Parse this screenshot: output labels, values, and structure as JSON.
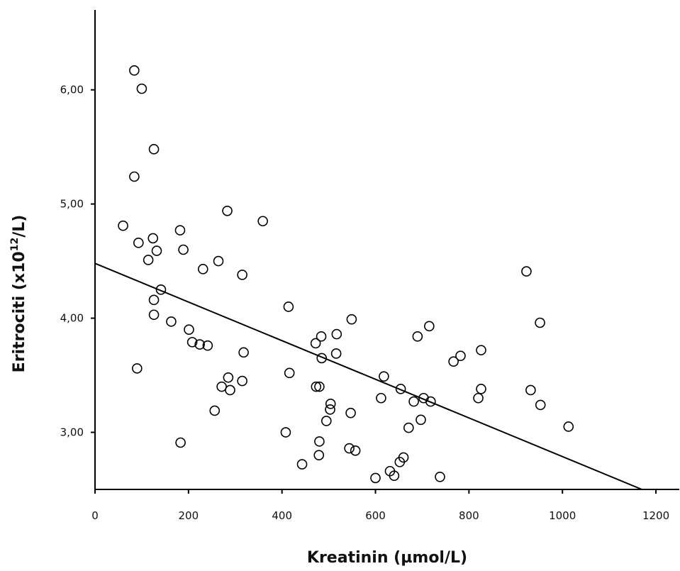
{
  "chart_data": {
    "type": "scatter",
    "xlabel": "Kreatinin (µmol/L)",
    "ylabel_base": "Eritrociti (x10",
    "ylabel_sup": "12",
    "ylabel_tail": "/L)",
    "xlim": [
      0,
      1250
    ],
    "ylim": [
      2.5,
      6.7
    ],
    "xticks": [
      0,
      200,
      400,
      600,
      800,
      1000,
      1200
    ],
    "xtick_labels": [
      "0",
      "200",
      "400",
      "600",
      "800",
      "1000",
      "1200"
    ],
    "yticks": [
      3,
      4,
      5,
      6
    ],
    "ytick_labels": [
      "3,00",
      "4,00",
      "5,00",
      "6,00"
    ],
    "grid": false,
    "marker": "open-circle",
    "fit_line": {
      "x": [
        0,
        1170
      ],
      "y": [
        4.48,
        2.5
      ]
    },
    "points": [
      {
        "x": 84,
        "y": 6.17
      },
      {
        "x": 100,
        "y": 6.01
      },
      {
        "x": 126,
        "y": 5.48
      },
      {
        "x": 84,
        "y": 5.24
      },
      {
        "x": 283,
        "y": 4.94
      },
      {
        "x": 359,
        "y": 4.85
      },
      {
        "x": 60,
        "y": 4.81
      },
      {
        "x": 182,
        "y": 4.77
      },
      {
        "x": 124,
        "y": 4.7
      },
      {
        "x": 93,
        "y": 4.66
      },
      {
        "x": 132,
        "y": 4.59
      },
      {
        "x": 189,
        "y": 4.6
      },
      {
        "x": 114,
        "y": 4.51
      },
      {
        "x": 264,
        "y": 4.5
      },
      {
        "x": 231,
        "y": 4.43
      },
      {
        "x": 315,
        "y": 4.38
      },
      {
        "x": 141,
        "y": 4.25
      },
      {
        "x": 126,
        "y": 4.16
      },
      {
        "x": 414,
        "y": 4.1
      },
      {
        "x": 126,
        "y": 4.03
      },
      {
        "x": 163,
        "y": 3.97
      },
      {
        "x": 201,
        "y": 3.9
      },
      {
        "x": 208,
        "y": 3.79
      },
      {
        "x": 224,
        "y": 3.77
      },
      {
        "x": 241,
        "y": 3.76
      },
      {
        "x": 318,
        "y": 3.7
      },
      {
        "x": 90,
        "y": 3.56
      },
      {
        "x": 416,
        "y": 3.52
      },
      {
        "x": 285,
        "y": 3.48
      },
      {
        "x": 315,
        "y": 3.45
      },
      {
        "x": 271,
        "y": 3.4
      },
      {
        "x": 289,
        "y": 3.37
      },
      {
        "x": 256,
        "y": 3.19
      },
      {
        "x": 183,
        "y": 2.91
      },
      {
        "x": 408,
        "y": 3.0
      },
      {
        "x": 443,
        "y": 2.72
      },
      {
        "x": 484,
        "y": 3.84
      },
      {
        "x": 472,
        "y": 3.78
      },
      {
        "x": 517,
        "y": 3.86
      },
      {
        "x": 549,
        "y": 3.99
      },
      {
        "x": 485,
        "y": 3.65
      },
      {
        "x": 516,
        "y": 3.69
      },
      {
        "x": 473,
        "y": 3.4
      },
      {
        "x": 480,
        "y": 3.4
      },
      {
        "x": 504,
        "y": 3.25
      },
      {
        "x": 503,
        "y": 3.2
      },
      {
        "x": 495,
        "y": 3.1
      },
      {
        "x": 547,
        "y": 3.17
      },
      {
        "x": 480,
        "y": 2.92
      },
      {
        "x": 544,
        "y": 2.86
      },
      {
        "x": 557,
        "y": 2.84
      },
      {
        "x": 479,
        "y": 2.8
      },
      {
        "x": 600,
        "y": 2.6
      },
      {
        "x": 618,
        "y": 3.49
      },
      {
        "x": 612,
        "y": 3.3
      },
      {
        "x": 654,
        "y": 3.38
      },
      {
        "x": 631,
        "y": 2.66
      },
      {
        "x": 640,
        "y": 2.62
      },
      {
        "x": 652,
        "y": 2.74
      },
      {
        "x": 660,
        "y": 2.78
      },
      {
        "x": 671,
        "y": 3.04
      },
      {
        "x": 682,
        "y": 3.27
      },
      {
        "x": 690,
        "y": 3.84
      },
      {
        "x": 697,
        "y": 3.11
      },
      {
        "x": 703,
        "y": 3.3
      },
      {
        "x": 715,
        "y": 3.93
      },
      {
        "x": 718,
        "y": 3.27
      },
      {
        "x": 738,
        "y": 2.61
      },
      {
        "x": 767,
        "y": 3.62
      },
      {
        "x": 782,
        "y": 3.67
      },
      {
        "x": 826,
        "y": 3.72
      },
      {
        "x": 820,
        "y": 3.3
      },
      {
        "x": 826,
        "y": 3.38
      },
      {
        "x": 923,
        "y": 4.41
      },
      {
        "x": 932,
        "y": 3.37
      },
      {
        "x": 952,
        "y": 3.96
      },
      {
        "x": 953,
        "y": 3.24
      },
      {
        "x": 1013,
        "y": 3.05
      }
    ]
  }
}
